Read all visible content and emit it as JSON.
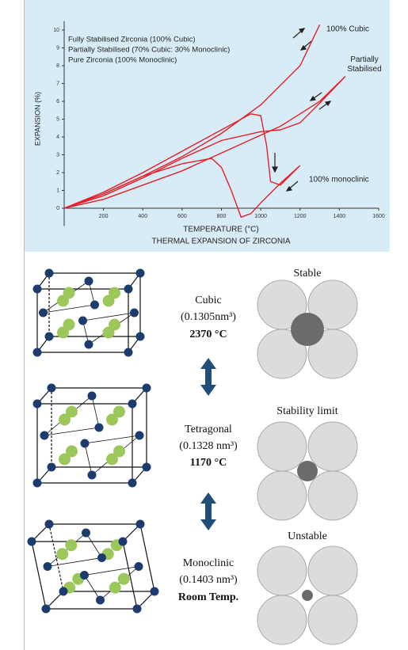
{
  "chart_data": {
    "type": "line",
    "title": "THERMAL EXPANSION OF ZIRCONIA",
    "x_label": "TEMPERATURE (°C)",
    "y_label": "EXPANSION (%)",
    "annotations": [
      "Fully Stabilised Zirconia (100% Cubic)",
      "Partially Stabilised (70% Cubic: 30% Monoclinic)",
      "Pure Zirconia (100% Monoclinic)"
    ],
    "xlim": [
      0,
      1600
    ],
    "ylim": [
      -1,
      10.5
    ],
    "xticks": [
      200,
      400,
      600,
      800,
      1000,
      1200,
      1400,
      1600
    ],
    "yticks": [
      0,
      1,
      2,
      3,
      4,
      5,
      6,
      7,
      8,
      9,
      10
    ],
    "series": [
      {
        "name": "100% Cubic",
        "color": "#e32028",
        "x": [
          0,
          200,
          400,
          600,
          800,
          1000,
          1200,
          1300
        ],
        "values": [
          0,
          0.8,
          1.8,
          2.9,
          4.2,
          5.8,
          8.0,
          10.3
        ]
      },
      {
        "name": "Partially Stabilised",
        "color": "#e32028",
        "x": [
          0,
          200,
          400,
          600,
          800,
          1000,
          1100,
          1200,
          1300,
          1430,
          1300,
          1200,
          1100,
          1000,
          800,
          600,
          400,
          200,
          0
        ],
        "values": [
          0,
          0.7,
          1.7,
          2.8,
          3.8,
          4.3,
          4.4,
          4.8,
          5.9,
          7.4,
          6.0,
          5.3,
          4.6,
          4.1,
          3.1,
          2.1,
          1.3,
          0.5,
          0
        ]
      },
      {
        "name": "100% monoclinic",
        "color": "#e32028",
        "x": [
          0,
          200,
          400,
          600,
          800,
          950,
          1000,
          1030,
          1050,
          1100,
          1200,
          1100,
          1000,
          950,
          900,
          850,
          800,
          750,
          600,
          400,
          200,
          0
        ],
        "values": [
          0,
          0.9,
          2.0,
          3.2,
          4.4,
          5.3,
          5.2,
          3.5,
          1.5,
          1.3,
          2.4,
          1.4,
          0.3,
          -0.3,
          -0.5,
          1.0,
          2.3,
          2.8,
          2.5,
          1.8,
          0.8,
          0
        ]
      }
    ]
  },
  "diagram": {
    "phases": [
      {
        "name": "Cubic",
        "volume": "(0.1305nm³)",
        "temperature": "2370 °C"
      },
      {
        "name": "Tetragonal",
        "volume": "(0.1328 nm³)",
        "temperature": "1170 °C"
      },
      {
        "name": "Monoclinic",
        "volume": "(0.1403 nm³)",
        "temperature": "Room Temp."
      }
    ],
    "stability": [
      "Stable",
      "Stability limit",
      "Unstable"
    ]
  }
}
